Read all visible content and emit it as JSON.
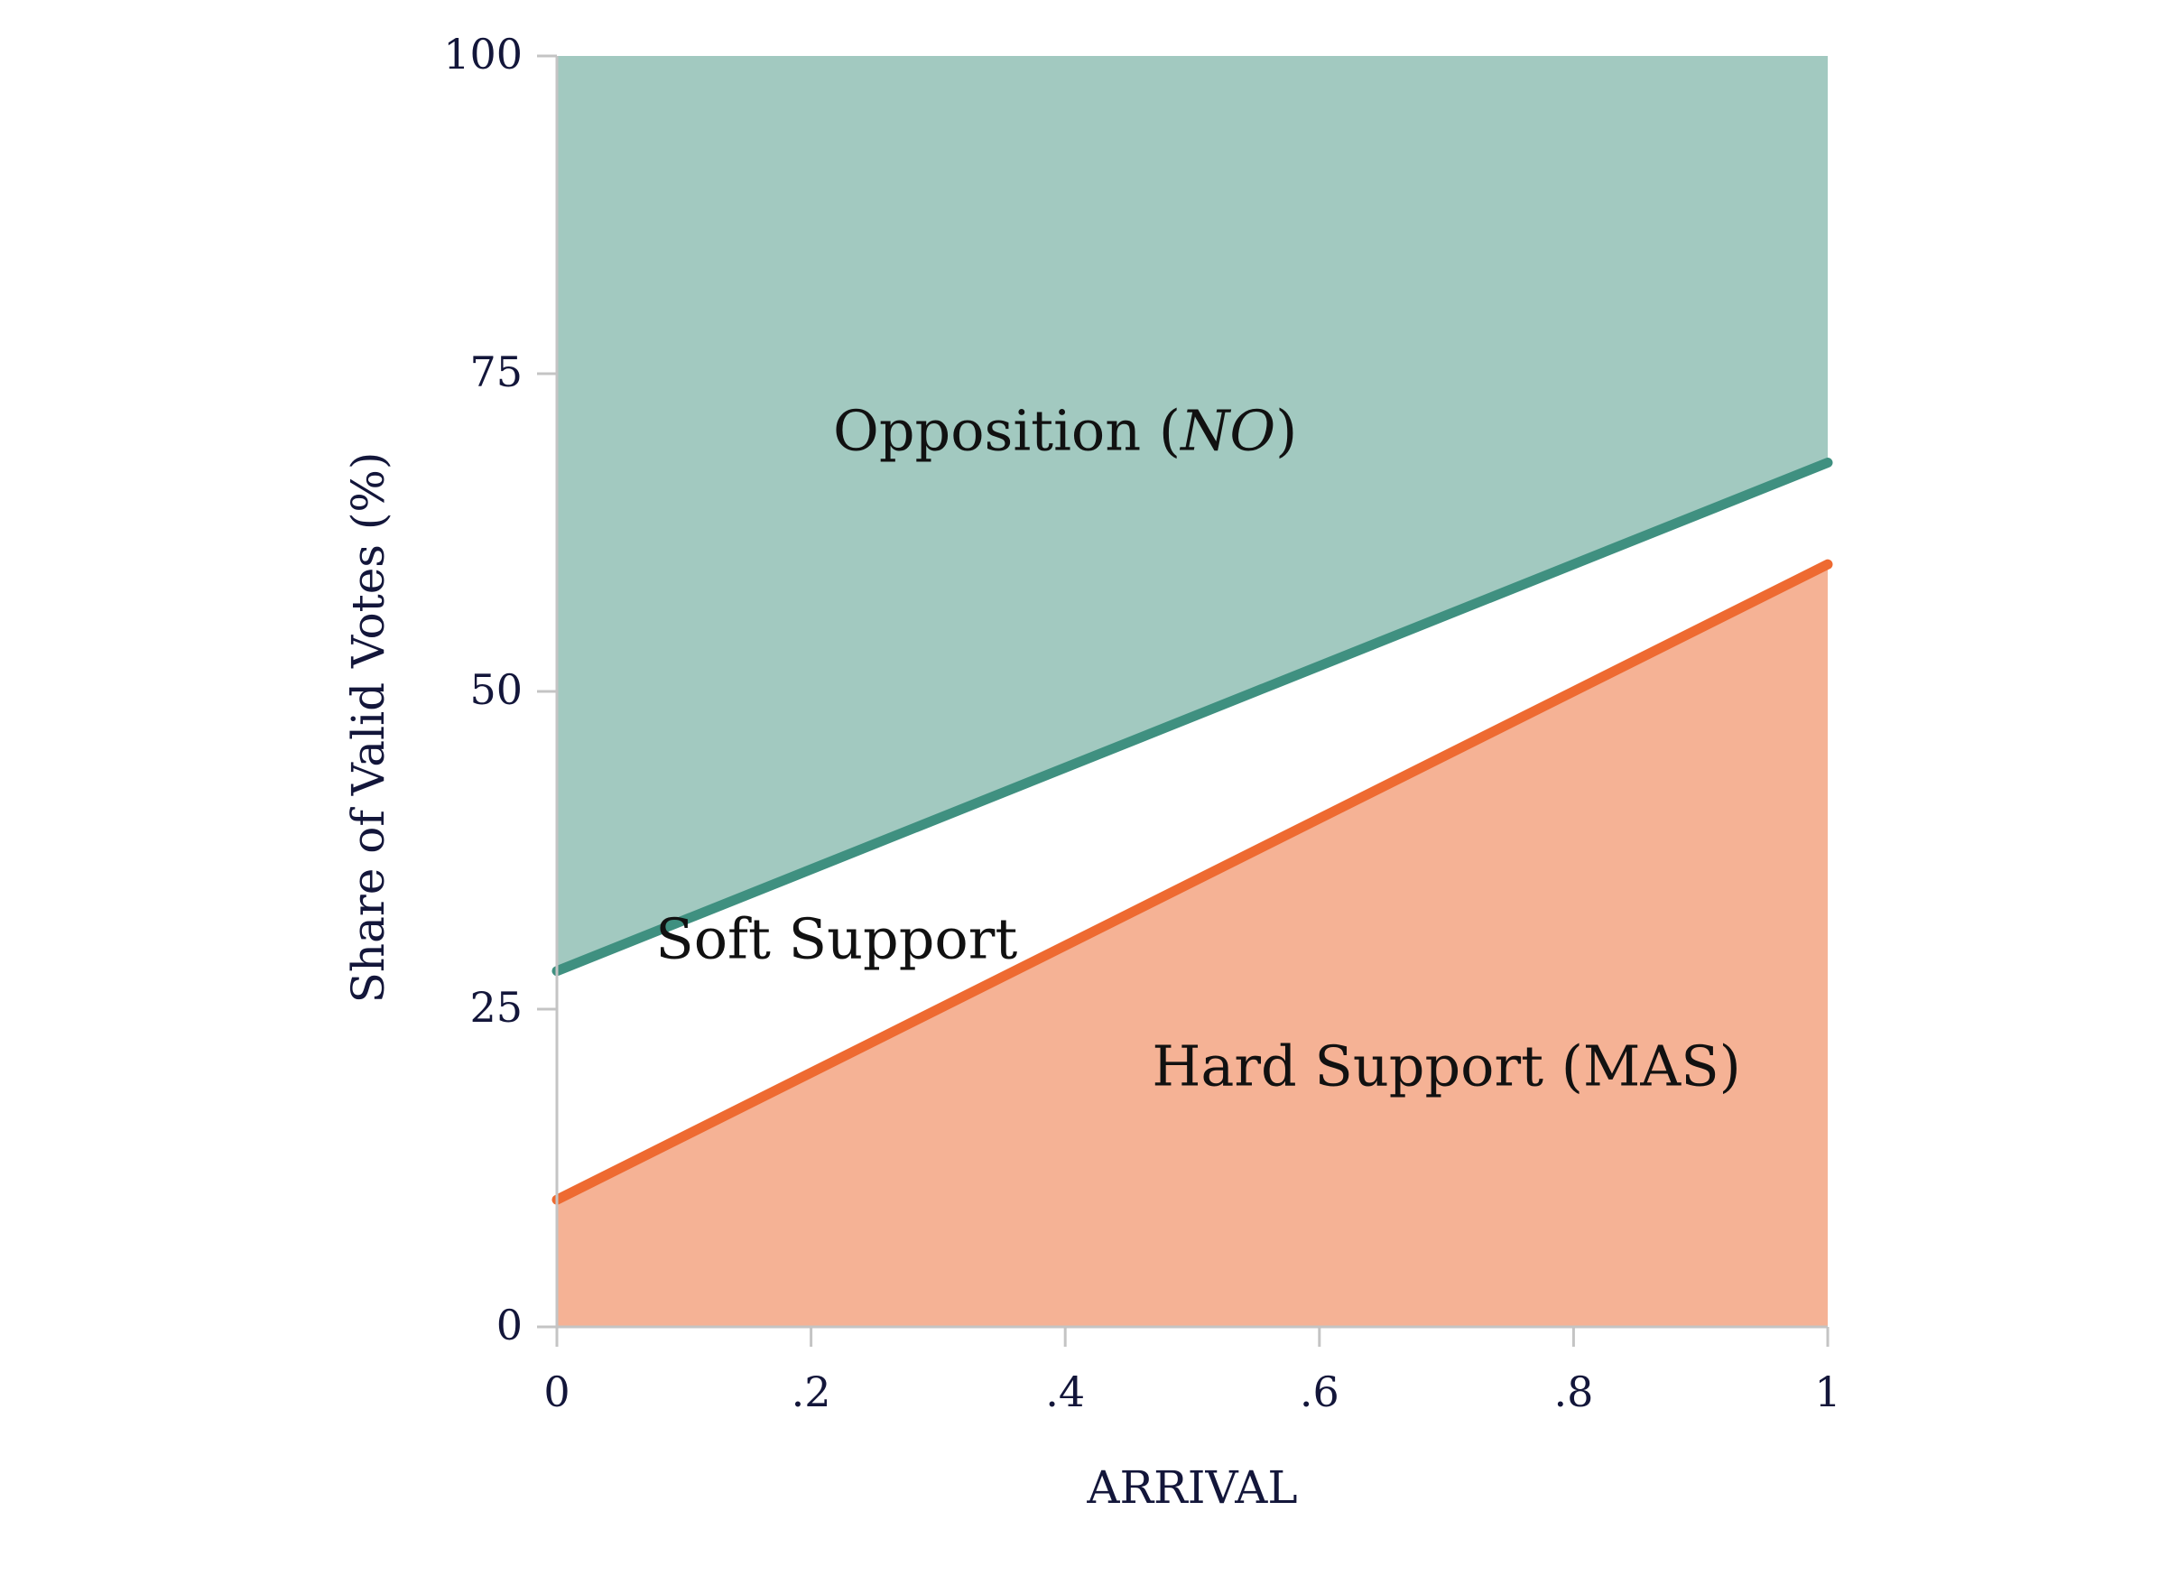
{
  "chart_data": {
    "type": "area",
    "xlabel": "ARRIVAL",
    "ylabel": "Share of Valid Votes (%)",
    "xlim": [
      0,
      1
    ],
    "ylim": [
      0,
      100
    ],
    "x_ticks": [
      {
        "value": 0,
        "label": "0"
      },
      {
        "value": 0.2,
        "label": ".2"
      },
      {
        "value": 0.4,
        "label": ".4"
      },
      {
        "value": 0.6,
        "label": ".6"
      },
      {
        "value": 0.8,
        "label": ".8"
      },
      {
        "value": 1,
        "label": "1"
      }
    ],
    "y_ticks": [
      {
        "value": 0,
        "label": "0"
      },
      {
        "value": 25,
        "label": "25"
      },
      {
        "value": 50,
        "label": "50"
      },
      {
        "value": 75,
        "label": "75"
      },
      {
        "value": 100,
        "label": "100"
      }
    ],
    "grid": false,
    "series": [
      {
        "x": [
          0,
          1
        ],
        "y": [
          28,
          68
        ],
        "color": "#3f9080",
        "fill": "above",
        "fill_color": "#a2c9c0"
      },
      {
        "x": [
          0,
          1
        ],
        "y": [
          10,
          60
        ],
        "color": "#ee6a31",
        "fill": "below",
        "fill_color": "#f5b295"
      }
    ],
    "annotations": [
      {
        "id": "opposition",
        "text_main": "Opposition (",
        "text_italic": "NO",
        "text_end": ")",
        "x": 0.4,
        "y": 69
      },
      {
        "id": "soft",
        "text": "Soft Support",
        "x": 0.22,
        "y": 29
      },
      {
        "id": "hard",
        "text": "Hard Support (MAS)",
        "x": 0.7,
        "y": 19
      }
    ]
  }
}
